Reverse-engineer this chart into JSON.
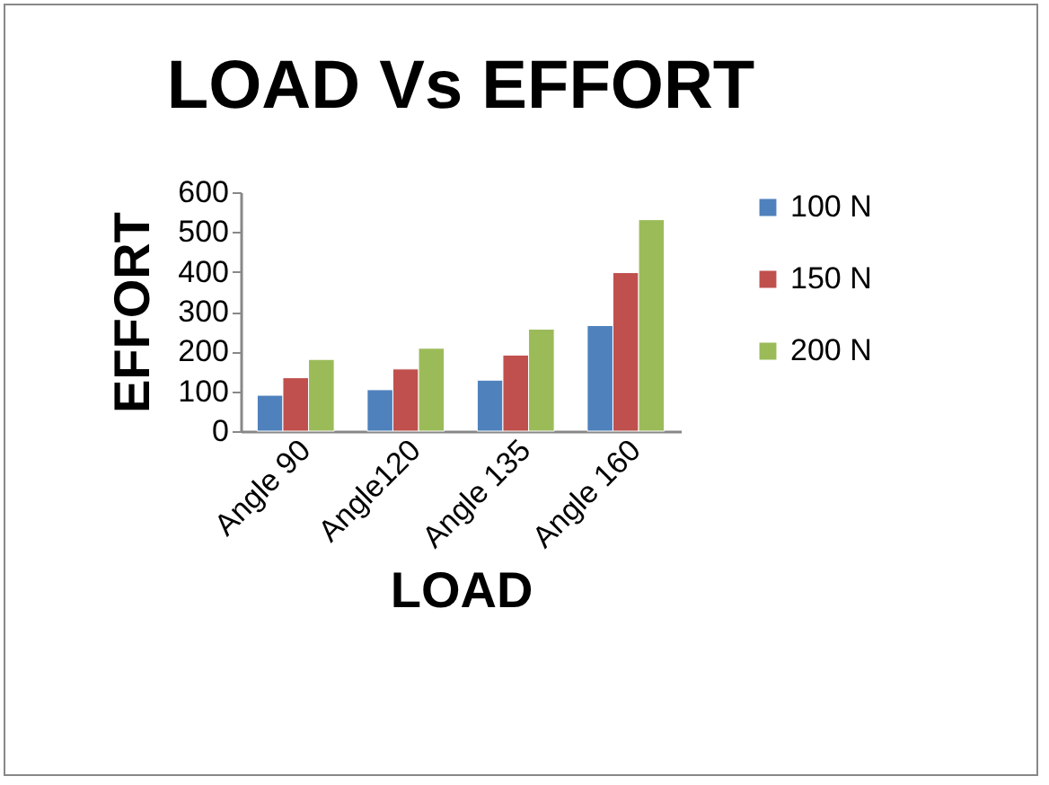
{
  "chart_data": {
    "type": "bar",
    "title": "LOAD  Vs  EFFORT",
    "xlabel": "LOAD",
    "ylabel": "EFFORT",
    "categories": [
      "Angle 90",
      "Angle120",
      "Angle 135",
      "Angle 160"
    ],
    "series": [
      {
        "name": "100 N",
        "color": "#4f81bd",
        "values": [
          90,
          104,
          128,
          265
        ]
      },
      {
        "name": "150 N",
        "color": "#c0504d",
        "values": [
          134,
          156,
          191,
          398
        ]
      },
      {
        "name": "200 N",
        "color": "#9bbb59",
        "values": [
          180,
          208,
          256,
          531
        ]
      }
    ],
    "ylim": [
      0,
      600
    ],
    "yticks": [
      0,
      100,
      200,
      300,
      400,
      500,
      600
    ],
    "legend": "right",
    "grid": false
  }
}
